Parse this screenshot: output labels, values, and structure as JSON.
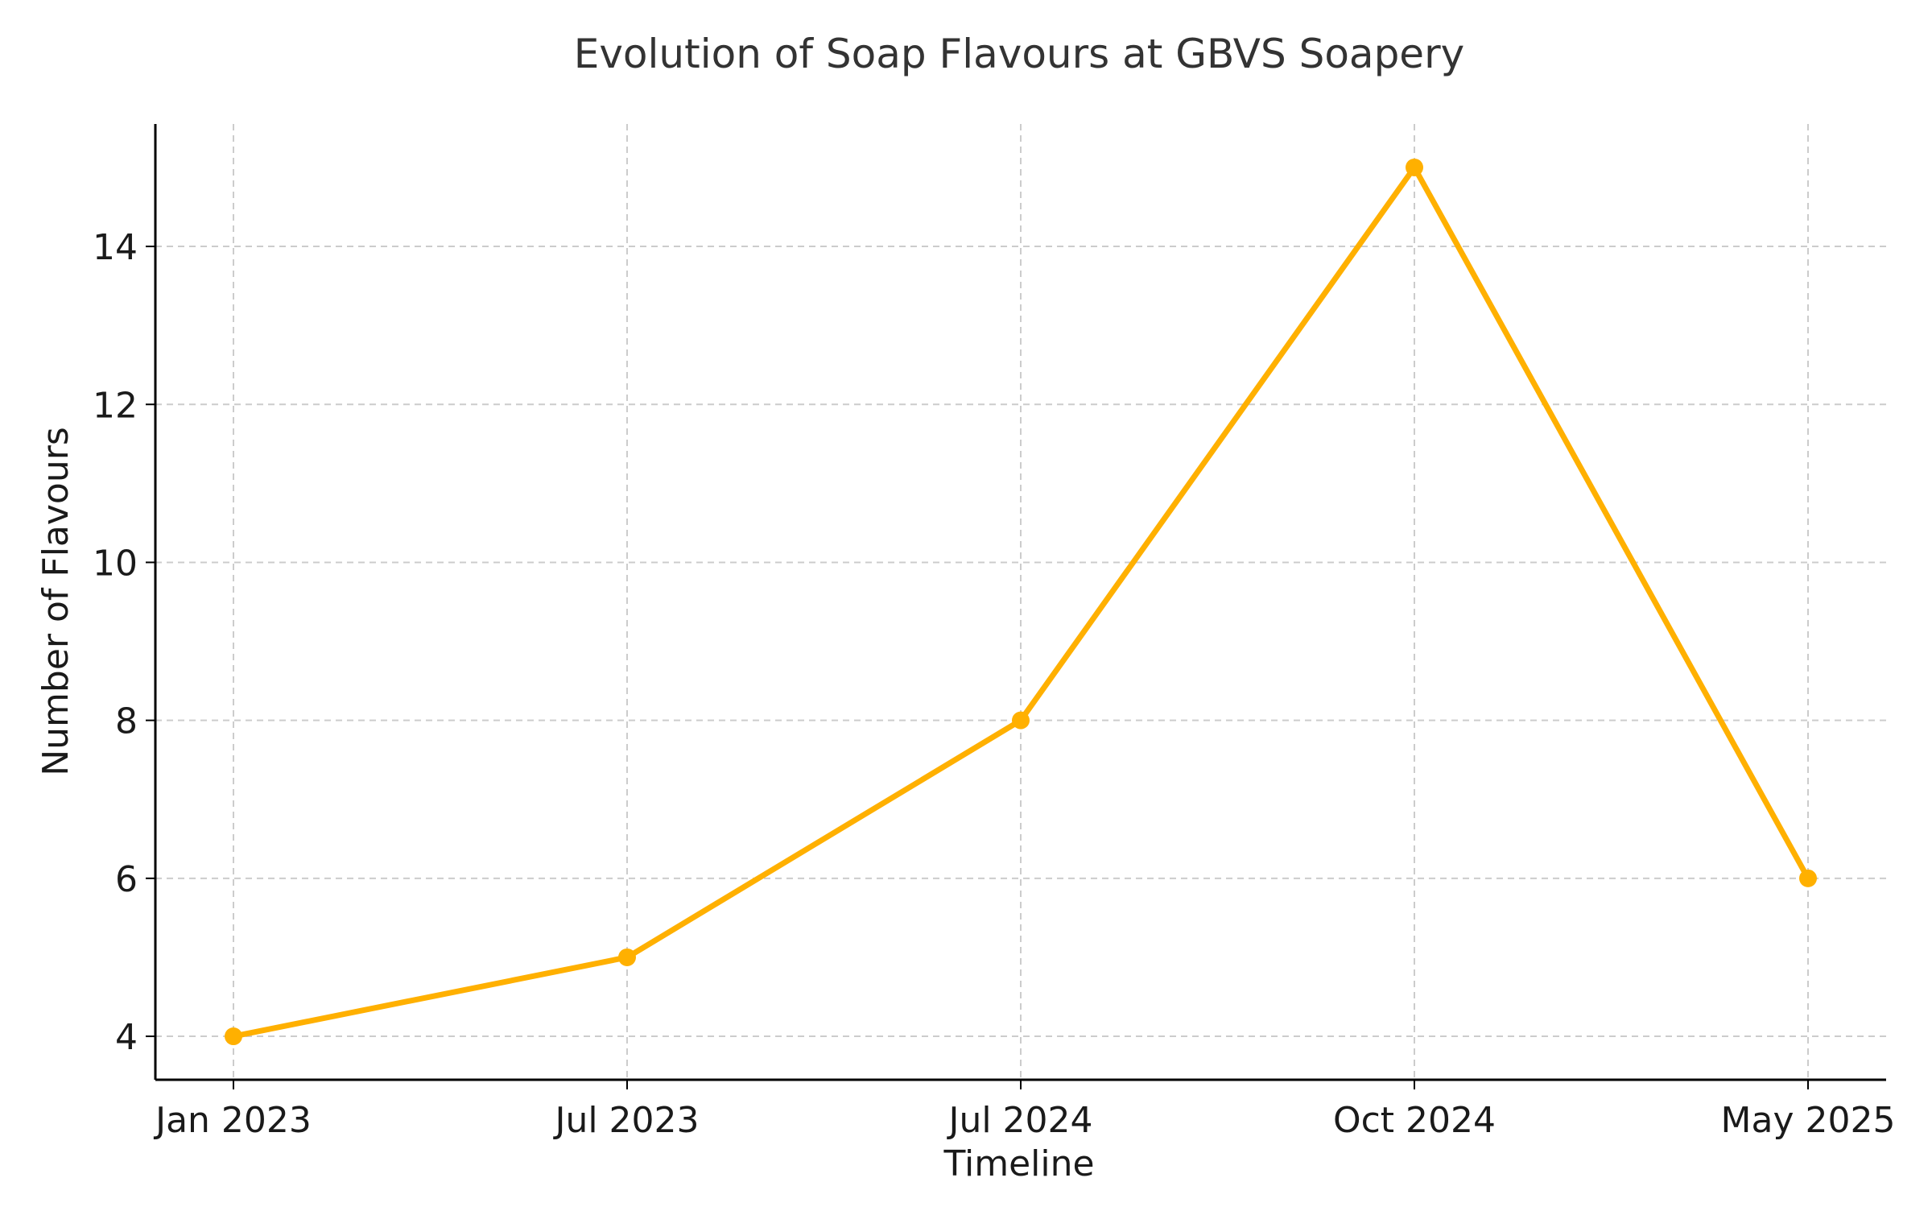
{
  "chart_data": {
    "type": "line",
    "title": "Evolution of Soap Flavours at GBVS Soapery",
    "xlabel": "Timeline",
    "ylabel": "Number of Flavours",
    "categories": [
      "Jan 2023",
      "Jul 2023",
      "Jul 2024",
      "Oct 2024",
      "May 2025"
    ],
    "series": [
      {
        "name": "Number of Flavours",
        "values": [
          4,
          5,
          8,
          15,
          6
        ],
        "color": "#FFB000"
      }
    ],
    "ylim": [
      3.45,
      15.55
    ],
    "yticks": [
      4,
      6,
      8,
      10,
      12,
      14
    ],
    "grid": true,
    "grid_color": "#cccccc",
    "axis_color": "#000000",
    "text_color": "#1a1a1a",
    "title_color": "#333333"
  }
}
